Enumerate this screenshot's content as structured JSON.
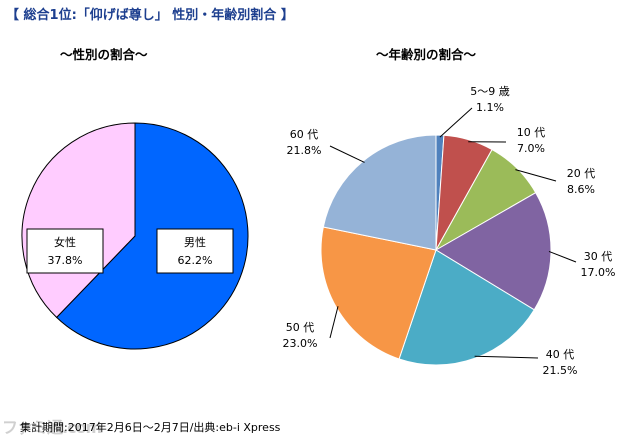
{
  "header": {
    "title": "【 総合1位:「仰げば尊し」 性別・年齢別割合 】"
  },
  "footer": {
    "source": "集計期間:2017年2月6日〜2月7日/出典:eb-i Xpress",
    "watermark": "ファミ通.com"
  },
  "chart_data": [
    {
      "type": "pie",
      "title": "〜性別の割合〜",
      "slices": [
        {
          "name": "男性",
          "percent_label": "62.2%",
          "value": 62.2,
          "color": "#0066ff"
        },
        {
          "name": "女性",
          "percent_label": "37.8%",
          "value": 37.8,
          "color": "#ffccff"
        }
      ]
    },
    {
      "type": "pie",
      "title": "〜年齢別の割合〜",
      "slices": [
        {
          "name": "5〜9 歳",
          "percent_label": "1.1%",
          "value": 1.1,
          "color": "#4f81bd"
        },
        {
          "name": "10 代",
          "percent_label": "7.0%",
          "value": 7.0,
          "color": "#c0504d"
        },
        {
          "name": "20 代",
          "percent_label": "8.6%",
          "value": 8.6,
          "color": "#9bbb59"
        },
        {
          "name": "30 代",
          "percent_label": "17.0%",
          "value": 17.0,
          "color": "#8064a2"
        },
        {
          "name": "40 代",
          "percent_label": "21.5%",
          "value": 21.5,
          "color": "#4bacc6"
        },
        {
          "name": "50 代",
          "percent_label": "23.0%",
          "value": 23.0,
          "color": "#f79646"
        },
        {
          "name": "60 代",
          "percent_label": "21.8%",
          "value": 21.8,
          "color": "#95b3d7"
        }
      ]
    }
  ]
}
